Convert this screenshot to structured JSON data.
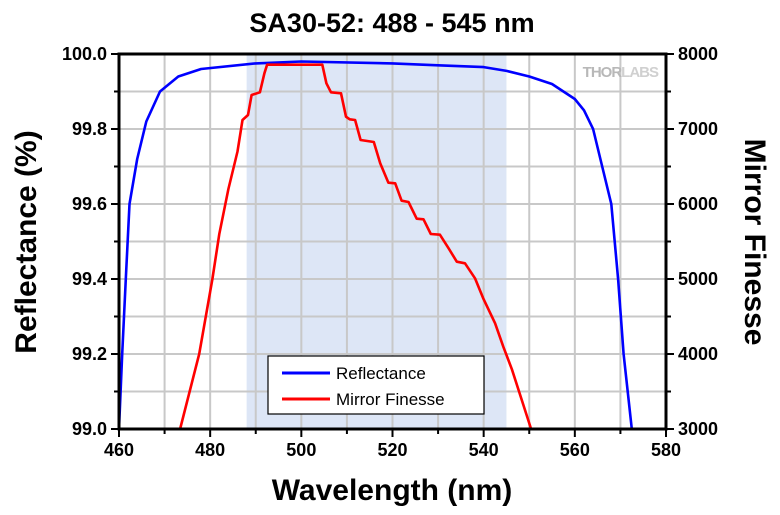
{
  "chart_data": {
    "type": "line",
    "title": "SA30-52: 488 - 545 nm",
    "xlabel": "Wavelength (nm)",
    "ylabel": "Reflectance (%)",
    "y2label": "Mirror Finesse",
    "xlim": [
      460,
      580
    ],
    "ylim": [
      99.0,
      100.0
    ],
    "y2lim": [
      3000,
      8000
    ],
    "xticks": [
      "460",
      "480",
      "500",
      "520",
      "540",
      "560",
      "580"
    ],
    "yticks": [
      "99.0",
      "99.2",
      "99.4",
      "99.6",
      "99.8",
      "100.0"
    ],
    "y2ticks": [
      "3000",
      "4000",
      "5000",
      "6000",
      "7000",
      "8000"
    ],
    "grid": true,
    "legend_position": "bottom-center",
    "watermark": "THORLABS",
    "shaded_band": {
      "from": 488,
      "to": 545,
      "color": "#dde6f6"
    },
    "series": [
      {
        "name": "Reflectance",
        "axis": "left",
        "color": "#0000ff",
        "x": [
          460,
          460.7,
          461.5,
          462.3,
          464,
          466,
          469,
          473,
          478,
          490,
          500,
          520,
          530,
          540,
          545,
          550,
          555,
          560,
          562,
          564,
          566,
          568,
          569.5,
          570.7,
          572.5
        ],
        "y": [
          99.0,
          99.2,
          99.4,
          99.6,
          99.72,
          99.82,
          99.9,
          99.94,
          99.96,
          99.975,
          99.98,
          99.975,
          99.97,
          99.965,
          99.955,
          99.94,
          99.92,
          99.88,
          99.85,
          99.8,
          99.7,
          99.6,
          99.4,
          99.2,
          99.0
        ]
      },
      {
        "name": "Mirror Finesse",
        "axis": "right",
        "color": "#ff0000",
        "x": [
          473.4,
          477.6,
          480.5,
          482,
          484,
          486,
          487.1,
          488.3,
          489.1,
          490.9,
          491.9,
          492.5,
          504.6,
          505.5,
          506.5,
          508.7,
          509.8,
          510.6,
          511.8,
          513,
          515.9,
          517.3,
          519.1,
          520.6,
          522,
          523.5,
          525.3,
          526.8,
          528.4,
          530.4,
          532.3,
          534.1,
          535.9,
          538.1,
          539.9,
          542.5,
          544.3,
          546.2,
          550.4
        ],
        "y": [
          3000,
          4000,
          5000,
          5600,
          6200,
          6700,
          7120,
          7187,
          7453,
          7489,
          7742,
          7857,
          7857,
          7609,
          7489,
          7476,
          7164,
          7129,
          7120,
          6853,
          6827,
          6543,
          6284,
          6276,
          6044,
          6027,
          5804,
          5796,
          5600,
          5591,
          5409,
          5231,
          5209,
          5009,
          4743,
          4409,
          4097,
          3796,
          3000
        ]
      }
    ]
  }
}
